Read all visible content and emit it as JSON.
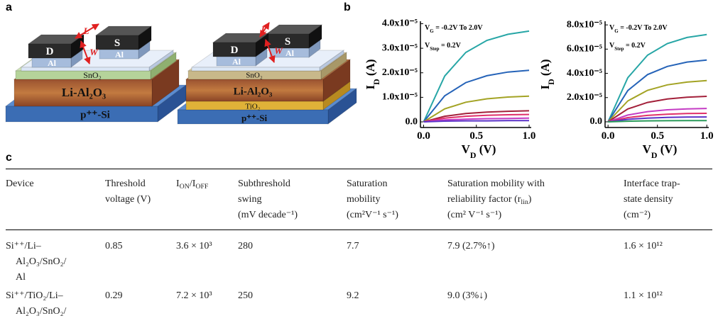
{
  "panel_labels": [
    "a",
    "b",
    "c"
  ],
  "panel_a": {
    "devices": [
      {
        "electrodes": [
          "D",
          "S"
        ],
        "contacts": [
          "Al",
          "Al"
        ],
        "length": "L",
        "width": "W",
        "layers": [
          "SnO₂",
          "Li-Al₂O₃",
          "p⁺⁺-Si"
        ]
      },
      {
        "electrodes": [
          "D",
          "S"
        ],
        "contacts": [
          "Al",
          "Al"
        ],
        "length": "L",
        "width": "W",
        "layers": [
          "SnO₂",
          "Li-Al₂O₃",
          "TiO₂",
          "p⁺⁺-Si"
        ]
      }
    ]
  },
  "chart_data": [
    {
      "type": "line",
      "annotations": [
        [
          "V",
          "G",
          " = -0.2V To 2.0V"
        ],
        [
          "V",
          "Step",
          " = 0.2V"
        ]
      ],
      "xlabel": [
        "V",
        "D",
        " (V)"
      ],
      "ylabel": [
        "I",
        "D",
        " (A)"
      ],
      "xlim": [
        -0.03,
        1.02
      ],
      "ylim": [
        -2.3e-06,
        4.1e-05
      ],
      "xticks": [
        {
          "value": 0,
          "label": "0.0"
        },
        0.5,
        {
          "value": 1,
          "label": "1.0"
        }
      ],
      "yticks": [
        {
          "value": 0,
          "label": "0.0"
        },
        {
          "value": 1e-05,
          "label": "1.0x10⁻⁵"
        },
        {
          "value": 2e-05,
          "label": "2.0x10⁻⁵"
        },
        {
          "value": 3e-05,
          "label": "3.0x10⁻⁵"
        },
        {
          "value": 4e-05,
          "label": "4.0x10⁻⁵"
        }
      ],
      "x": [
        0,
        0.2,
        0.4,
        0.6,
        0.8,
        1.0
      ],
      "series": [
        {
          "color": "#27a6a6",
          "values": [
            0,
            1.87e-05,
            2.83e-05,
            3.32e-05,
            3.57e-05,
            3.7e-05
          ]
        },
        {
          "color": "#2563b8",
          "values": [
            0,
            1.06e-05,
            1.6e-05,
            1.88e-05,
            2.03e-05,
            2.1e-05
          ]
        },
        {
          "color": "#a3a324",
          "values": [
            0,
            5.3e-06,
            8e-06,
            9.4e-06,
            1.01e-05,
            1.05e-05
          ]
        },
        {
          "color": "#a3203a",
          "values": [
            0,
            2.3e-06,
            3.4e-06,
            4e-06,
            4.3e-06,
            4.5e-06
          ]
        },
        {
          "color": "#e0306a",
          "values": [
            0,
            1.5e-06,
            2.3e-06,
            2.7e-06,
            2.9e-06,
            3e-06
          ]
        },
        {
          "color": "#c43cc4",
          "values": [
            0,
            8e-07,
            1.1e-06,
            1.3e-06,
            1.4e-06,
            1.5e-06
          ]
        },
        {
          "color": "#5a32c8",
          "values": [
            0,
            3e-07,
            4e-07,
            4e-07,
            5e-07,
            5e-07
          ]
        }
      ]
    },
    {
      "type": "line",
      "annotations": [
        [
          "V",
          "G",
          " = -0.2V To 2.0V"
        ],
        [
          "V",
          "Step",
          " = 0.2V"
        ]
      ],
      "xlabel": [
        "V",
        "D",
        " (V)"
      ],
      "ylabel": [
        "I",
        "D",
        " (A)"
      ],
      "xlim": [
        -0.03,
        1.02
      ],
      "ylim": [
        -4.7e-06,
        8.3e-05
      ],
      "xticks": [
        {
          "value": 0,
          "label": "0.0"
        },
        0.5,
        {
          "value": 1,
          "label": "1.0"
        }
      ],
      "yticks": [
        {
          "value": 0,
          "label": "0.0"
        },
        {
          "value": 2e-05,
          "label": "2.0x10⁻⁵"
        },
        {
          "value": 4e-05,
          "label": "4.0x10⁻⁵"
        },
        {
          "value": 6e-05,
          "label": "6.0x10⁻⁵"
        },
        {
          "value": 8e-05,
          "label": "8.0x10⁻⁵"
        }
      ],
      "x": [
        0,
        0.2,
        0.4,
        0.6,
        0.8,
        1.0
      ],
      "series": [
        {
          "color": "#27a6a6",
          "values": [
            0,
            3.64e-05,
            5.5e-05,
            6.46e-05,
            6.96e-05,
            7.2e-05
          ]
        },
        {
          "color": "#2563b8",
          "values": [
            0,
            2.58e-05,
            3.9e-05,
            4.57e-05,
            4.93e-05,
            5.1e-05
          ]
        },
        {
          "color": "#a3a324",
          "values": [
            0,
            1.72e-05,
            2.6e-05,
            3.05e-05,
            3.28e-05,
            3.4e-05
          ]
        },
        {
          "color": "#a3203a",
          "values": [
            0,
            1.06e-05,
            1.6e-05,
            1.88e-05,
            2.03e-05,
            2.1e-05
          ]
        },
        {
          "color": "#c43cc4",
          "values": [
            0,
            5.6e-06,
            8.4e-06,
            9.9e-06,
            1.06e-05,
            1.1e-05
          ]
        },
        {
          "color": "#e0306a",
          "values": [
            0,
            3.5e-06,
            5.3e-06,
            6.3e-06,
            6.8e-06,
            7e-06
          ]
        },
        {
          "color": "#5a32c8",
          "values": [
            0,
            2e-06,
            3.1e-06,
            3.6e-06,
            3.9e-06,
            4e-06
          ]
        },
        {
          "color": "#2a9a5a",
          "values": [
            0,
            5e-07,
            8e-07,
            9e-07,
            1e-06,
            1e-06
          ]
        }
      ]
    }
  ],
  "table": {
    "header": [
      [
        "Device"
      ],
      [
        "Threshold",
        "voltage (V)"
      ],
      [
        [
          "I",
          "ON",
          "/I",
          "OFF"
        ]
      ],
      [
        "Subthreshold",
        "swing",
        "(mV decade⁻¹)"
      ],
      [
        "Saturation",
        "mobility",
        "(cm²V⁻¹ s⁻¹)"
      ],
      [
        "Saturation mobility with",
        [
          "reliability factor (r",
          "lin",
          ")"
        ],
        "(cm² V⁻¹ s⁻¹)"
      ],
      [
        "Interface trap-",
        "state density",
        "(cm⁻²)"
      ]
    ],
    "rows": [
      [
        [
          "Si⁺⁺/Li–",
          "Al₂O₃/SnO₂/",
          "Al"
        ],
        [
          "0.85"
        ],
        [
          "3.6 × 10³"
        ],
        [
          "280"
        ],
        [
          "7.7"
        ],
        [
          "7.9 (2.7%↑)"
        ],
        [
          "1.6 × 10¹²"
        ]
      ],
      [
        [
          "Si⁺⁺/TiO₂/Li–",
          "Al₂O₃/SnO₂/"
        ],
        [
          "0.29"
        ],
        [
          "7.2 × 10³"
        ],
        [
          "250"
        ],
        [
          "9.2"
        ],
        [
          "9.0 (3%↓)"
        ],
        [
          "1.1 × 10¹²"
        ]
      ]
    ]
  }
}
